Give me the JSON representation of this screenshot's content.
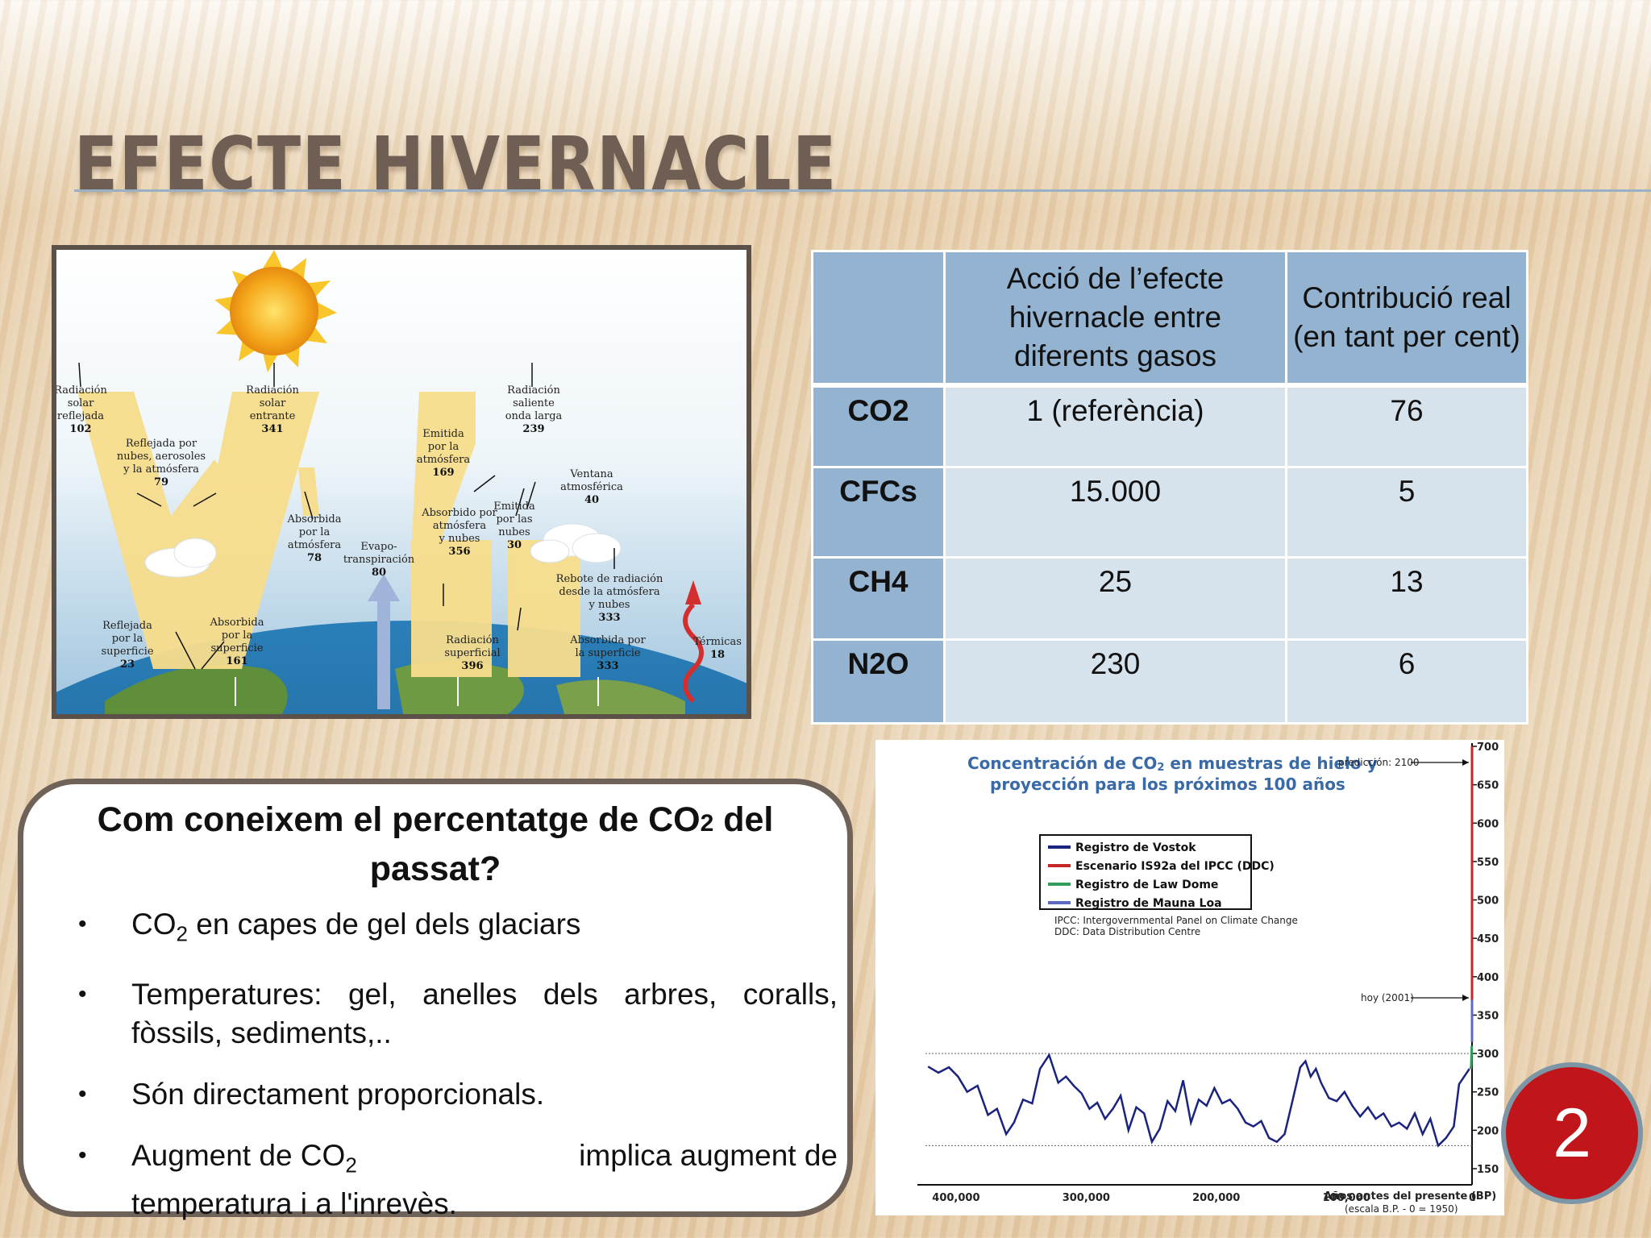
{
  "title": "EFECTE HIVERNACLE",
  "diagram": {
    "labels": [
      {
        "id": "reflected-solar",
        "lines": [
          "Radiación",
          "solar",
          "reflejada"
        ],
        "value": "102"
      },
      {
        "id": "incoming-solar",
        "lines": [
          "Radiación",
          "solar",
          "entrante"
        ],
        "value": "341"
      },
      {
        "id": "reflected-clouds",
        "lines": [
          "Reflejada por",
          "nubes, aerosoles",
          "y la atmósfera"
        ],
        "value": "79"
      },
      {
        "id": "absorbed-atmosphere",
        "lines": [
          "Absorbida",
          "por la",
          "atmósfera"
        ],
        "value": "78"
      },
      {
        "id": "evapotranspiration",
        "lines": [
          "Evapo-",
          "transpiración"
        ],
        "value": "80"
      },
      {
        "id": "emitted-atmosphere",
        "lines": [
          "Emitida",
          "por la",
          "atmósfera"
        ],
        "value": "169"
      },
      {
        "id": "outgoing-longwave",
        "lines": [
          "Radiación",
          "saliente",
          "onda larga"
        ],
        "value": "239"
      },
      {
        "id": "atmospheric-window",
        "lines": [
          "Ventana",
          "atmosférica"
        ],
        "value": "40"
      },
      {
        "id": "absorbed-atm-clouds",
        "lines": [
          "Absorbido por",
          "atmósfera",
          "y nubes"
        ],
        "value": "356"
      },
      {
        "id": "emitted-clouds",
        "lines": [
          "Emitida",
          "por las",
          "nubes"
        ],
        "value": "30"
      },
      {
        "id": "back-radiation",
        "lines": [
          "Rebote de radiación",
          "desde la atmósfera",
          "y nubes"
        ],
        "value": "333"
      },
      {
        "id": "reflected-surface",
        "lines": [
          "Reflejada",
          "por la",
          "superficie"
        ],
        "value": "23"
      },
      {
        "id": "absorbed-surface",
        "lines": [
          "Absorbida",
          "por la",
          "superficie"
        ],
        "value": "161"
      },
      {
        "id": "surface-radiation",
        "lines": [
          "Radiación",
          "superficial"
        ],
        "value": "396"
      },
      {
        "id": "absorbed-surface-2",
        "lines": [
          "Absorbida por",
          "la superficie"
        ],
        "value": "333"
      },
      {
        "id": "thermals",
        "lines": [
          "Térmicas"
        ],
        "value": "18"
      }
    ]
  },
  "table": {
    "headers": [
      "",
      "Acció de l’efecte hivernacle entre diferents gasos",
      "Contribució real (en tant per cent)"
    ],
    "rows": [
      {
        "gas": "CO2",
        "action": "1 (referència)",
        "contribution": "76"
      },
      {
        "gas": "CFCs",
        "action": "15.000",
        "contribution": "5"
      },
      {
        "gas": "CH4",
        "action": "25",
        "contribution": "13"
      },
      {
        "gas": "N2O",
        "action": "230",
        "contribution": "6"
      }
    ]
  },
  "textbox": {
    "heading_a": "Com coneixem el percentatge de CO",
    "heading_sub": "2",
    "heading_b": " del passat?",
    "b1_a": "CO",
    "b1_sub": "2",
    "b1_b": " en capes de gel dels glaciars",
    "b2": "Temperatures: gel, anelles dels arbres, coralls, fòssils, sediments,..",
    "b3": "Són directament proporcionals.",
    "b4_a": "Augment de CO",
    "b4_sub": "2",
    "b4_b": " implica augment de",
    "b4_c": "temperatura i a l'inrevès."
  },
  "chart": {
    "title_line1_a": "Concentración de CO",
    "title_line1_sub": "2",
    "title_line1_b": " en muestras de hielo y",
    "title_line2": "proyección para los próximos 100 años",
    "prediction_label": "predicción: 2100",
    "today_label": "hoy (2001)",
    "xlabel": "Años antes del presente (BP)",
    "xnote": "(escala B.P. - 0 = 1950)",
    "notes": [
      "IPCC: Intergovernmental Panel on Climate Change",
      "DDC: Data Distribution Centre"
    ],
    "x_ticks": [
      "400,000",
      "300,000",
      "200,000",
      "100,000",
      "0"
    ],
    "y_ticks": [
      "700",
      "650",
      "600",
      "550",
      "500",
      "450",
      "400",
      "350",
      "300",
      "250",
      "200",
      "150"
    ]
  },
  "chart_data": {
    "type": "line",
    "title": "Concentración de CO2 en muestras de hielo y proyección para los próximos 100 años",
    "xlabel": "Años antes del presente (BP)",
    "ylabel": "",
    "xlim": [
      420000,
      0
    ],
    "ylim": [
      150,
      700
    ],
    "legend_position": "top-center",
    "series": [
      {
        "name": "Registro de Vostok",
        "color": "#1a237e",
        "x": [
          418000,
          410000,
          402000,
          395000,
          388000,
          380000,
          372000,
          365000,
          358000,
          352000,
          345000,
          338000,
          332000,
          325000,
          318000,
          312000,
          306000,
          300000,
          294000,
          288000,
          282000,
          276000,
          270000,
          264000,
          258000,
          252000,
          246000,
          240000,
          234000,
          228000,
          222000,
          216000,
          210000,
          204000,
          198000,
          192000,
          186000,
          180000,
          174000,
          168000,
          162000,
          156000,
          150000,
          144000,
          138000,
          132000,
          128000,
          124000,
          120000,
          116000,
          110000,
          104000,
          98000,
          92000,
          86000,
          80000,
          74000,
          68000,
          62000,
          56000,
          50000,
          44000,
          38000,
          32000,
          26000,
          20000,
          14000,
          10000,
          6000,
          2000
        ],
        "y": [
          283,
          275,
          282,
          270,
          250,
          258,
          220,
          228,
          195,
          210,
          240,
          235,
          280,
          298,
          262,
          270,
          258,
          248,
          228,
          236,
          215,
          228,
          245,
          200,
          230,
          222,
          185,
          202,
          238,
          225,
          265,
          210,
          240,
          232,
          255,
          235,
          240,
          228,
          210,
          205,
          212,
          190,
          185,
          195,
          238,
          282,
          290,
          270,
          280,
          262,
          242,
          238,
          250,
          232,
          218,
          230,
          215,
          222,
          205,
          210,
          202,
          222,
          195,
          215,
          180,
          190,
          205,
          260,
          270,
          280
        ]
      },
      {
        "name": "Escenario IS92a del IPCC (DDC)",
        "color": "#c62828",
        "x": [
          0,
          0,
          0
        ],
        "y": [
          370,
          500,
          700
        ]
      },
      {
        "name": "Registro de Law Dome",
        "color": "#2e9e5a",
        "x": [
          1000,
          600,
          200
        ],
        "y": [
          280,
          285,
          310
        ]
      },
      {
        "name": "Registro de Mauna Loa",
        "color": "#5c6bc0",
        "x": [
          0,
          0
        ],
        "y": [
          315,
          370
        ]
      }
    ]
  },
  "page_number": "2",
  "colors": {
    "title": "#6f5e53",
    "table_header": "#93b3d1",
    "table_cell": "#d6e2ec",
    "badge": "#c0161b"
  }
}
